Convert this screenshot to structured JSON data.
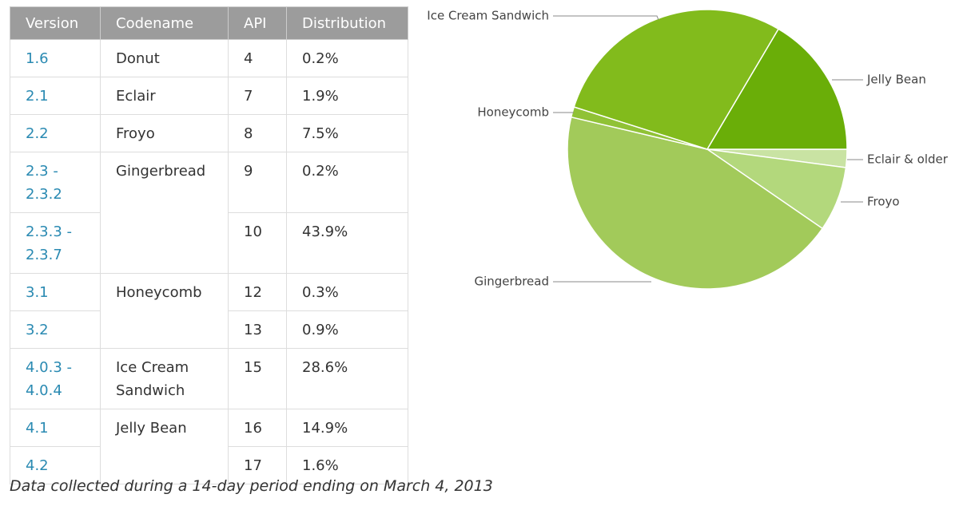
{
  "table": {
    "header": [
      "Version",
      "Codename",
      "API",
      "Distribution"
    ],
    "rows": [
      {
        "version": "1.6",
        "codename": "Donut",
        "api": "4",
        "distribution": "0.2%"
      },
      {
        "version": "2.1",
        "codename": "Eclair",
        "api": "7",
        "distribution": "1.9%"
      },
      {
        "version": "2.2",
        "codename": "Froyo",
        "api": "8",
        "distribution": "7.5%"
      },
      {
        "version": "2.3 - 2.3.2",
        "codename": "Gingerbread",
        "api": "9",
        "distribution": "0.2%"
      },
      {
        "version": "2.3.3 - 2.3.7",
        "api": "10",
        "distribution": "43.9%"
      },
      {
        "version": "3.1",
        "codename": "Honeycomb",
        "api": "12",
        "distribution": "0.3%"
      },
      {
        "version": "3.2",
        "api": "13",
        "distribution": "0.9%"
      },
      {
        "version": "4.0.3 - 4.0.4",
        "codename": "Ice Cream Sandwich",
        "api": "15",
        "distribution": "28.6%"
      },
      {
        "version": "4.1",
        "codename": "Jelly Bean",
        "api": "16",
        "distribution": "14.9%"
      },
      {
        "version": "4.2",
        "api": "17",
        "distribution": "1.6%"
      }
    ]
  },
  "chart_data": {
    "type": "pie",
    "categories": [
      "Eclair & older",
      "Froyo",
      "Gingerbread",
      "Honeycomb",
      "Ice Cream Sandwich",
      "Jelly Bean"
    ],
    "values": [
      2.1,
      7.5,
      44.1,
      1.2,
      28.6,
      16.5
    ],
    "colors": [
      "#c9e3a3",
      "#b3d87c",
      "#a2ca5a",
      "#90c236",
      "#82bb1c",
      "#6aae08"
    ]
  },
  "footer": "Data collected during a 14-day period ending on March 4, 2013"
}
